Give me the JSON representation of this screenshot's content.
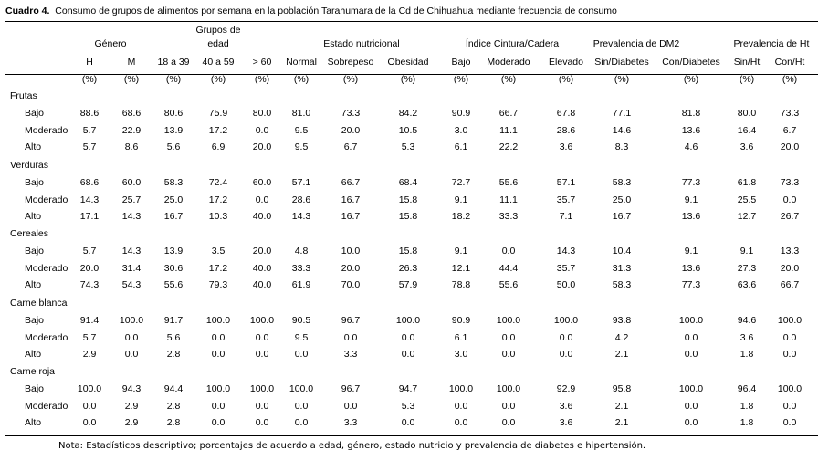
{
  "caption": {
    "label": "Cuadro 4.",
    "text": "Consumo de grupos de alimentos por semana en la población Tarahumara de la Cd de Chihuahua mediante frecuencia de consumo"
  },
  "header": {
    "groups": [
      {
        "label": "Género"
      },
      {
        "label": "Grupos de"
      },
      {
        "label": "edad"
      },
      {
        "label": "Estado nutricional"
      },
      {
        "label": "Índice Cintura/Cadera"
      },
      {
        "label": "Prevalencia de DM2"
      },
      {
        "label": "Prevalencia de Ht"
      }
    ],
    "columns": [
      "H",
      "M",
      "18 a 39",
      "40 a 59",
      "> 60",
      "Normal",
      "Sobrepeso",
      "Obesidad",
      "Bajo",
      "Moderado",
      "Elevado",
      "Sin/Diabetes",
      "Con/Diabetes",
      "Sin/Ht",
      "Con/Ht"
    ],
    "units": [
      "(%)",
      "(%)",
      "(%)",
      "(%)",
      "(%)",
      "(%)",
      "(%)",
      "(%)",
      "(%)",
      "(%)",
      "(%)",
      "(%)",
      "(%)",
      "(%)",
      "(%)"
    ]
  },
  "groups": [
    {
      "name": "Frutas",
      "rows": [
        {
          "level": "Bajo",
          "values": [
            "88.6",
            "68.6",
            "80.6",
            "75.9",
            "80.0",
            "81.0",
            "73.3",
            "84.2",
            "90.9",
            "66.7",
            "67.8",
            "77.1",
            "81.8",
            "80.0",
            "73.3"
          ]
        },
        {
          "level": "Moderado",
          "values": [
            "5.7",
            "22.9",
            "13.9",
            "17.2",
            "0.0",
            "9.5",
            "20.0",
            "10.5",
            "3.0",
            "11.1",
            "28.6",
            "14.6",
            "13.6",
            "16.4",
            "6.7"
          ]
        },
        {
          "level": "Alto",
          "values": [
            "5.7",
            "8.6",
            "5.6",
            "6.9",
            "20.0",
            "9.5",
            "6.7",
            "5.3",
            "6.1",
            "22.2",
            "3.6",
            "8.3",
            "4.6",
            "3.6",
            "20.0"
          ]
        }
      ]
    },
    {
      "name": "Verduras",
      "rows": [
        {
          "level": "Bajo",
          "values": [
            "68.6",
            "60.0",
            "58.3",
            "72.4",
            "60.0",
            "57.1",
            "66.7",
            "68.4",
            "72.7",
            "55.6",
            "57.1",
            "58.3",
            "77.3",
            "61.8",
            "73.3"
          ]
        },
        {
          "level": "Moderado",
          "values": [
            "14.3",
            "25.7",
            "25.0",
            "17.2",
            "0.0",
            "28.6",
            "16.7",
            "15.8",
            "9.1",
            "11.1",
            "35.7",
            "25.0",
            "9.1",
            "25.5",
            "0.0"
          ]
        },
        {
          "level": "Alto",
          "values": [
            "17.1",
            "14.3",
            "16.7",
            "10.3",
            "40.0",
            "14.3",
            "16.7",
            "15.8",
            "18.2",
            "33.3",
            "7.1",
            "16.7",
            "13.6",
            "12.7",
            "26.7"
          ]
        }
      ]
    },
    {
      "name": "Cereales",
      "rows": [
        {
          "level": "Bajo",
          "values": [
            "5.7",
            "14.3",
            "13.9",
            "3.5",
            "20.0",
            "4.8",
            "10.0",
            "15.8",
            "9.1",
            "0.0",
            "14.3",
            "10.4",
            "9.1",
            "9.1",
            "13.3"
          ]
        },
        {
          "level": "Moderado",
          "values": [
            "20.0",
            "31.4",
            "30.6",
            "17.2",
            "40.0",
            "33.3",
            "20.0",
            "26.3",
            "12.1",
            "44.4",
            "35.7",
            "31.3",
            "13.6",
            "27.3",
            "20.0"
          ]
        },
        {
          "level": "Alto",
          "values": [
            "74.3",
            "54.3",
            "55.6",
            "79.3",
            "40.0",
            "61.9",
            "70.0",
            "57.9",
            "78.8",
            "55.6",
            "50.0",
            "58.3",
            "77.3",
            "63.6",
            "66.7"
          ]
        }
      ]
    },
    {
      "name": "Carne blanca",
      "rows": [
        {
          "level": "Bajo",
          "values": [
            "91.4",
            "100.0",
            "91.7",
            "100.0",
            "100.0",
            "90.5",
            "96.7",
            "100.0",
            "90.9",
            "100.0",
            "100.0",
            "93.8",
            "100.0",
            "94.6",
            "100.0"
          ]
        },
        {
          "level": "Moderado",
          "values": [
            "5.7",
            "0.0",
            "5.6",
            "0.0",
            "0.0",
            "9.5",
            "0.0",
            "0.0",
            "6.1",
            "0.0",
            "0.0",
            "4.2",
            "0.0",
            "3.6",
            "0.0"
          ]
        },
        {
          "level": "Alto",
          "values": [
            "2.9",
            "0.0",
            "2.8",
            "0.0",
            "0.0",
            "0.0",
            "3.3",
            "0.0",
            "3.0",
            "0.0",
            "0.0",
            "2.1",
            "0.0",
            "1.8",
            "0.0"
          ]
        }
      ]
    },
    {
      "name": "Carne roja",
      "rows": [
        {
          "level": "Bajo",
          "values": [
            "100.0",
            "94.3",
            "94.4",
            "100.0",
            "100.0",
            "100.0",
            "96.7",
            "94.7",
            "100.0",
            "100.0",
            "92.9",
            "95.8",
            "100.0",
            "96.4",
            "100.0"
          ]
        },
        {
          "level": "Moderado",
          "values": [
            "0.0",
            "2.9",
            "2.8",
            "0.0",
            "0.0",
            "0.0",
            "0.0",
            "5.3",
            "0.0",
            "0.0",
            "3.6",
            "2.1",
            "0.0",
            "1.8",
            "0.0"
          ]
        },
        {
          "level": "Alto",
          "values": [
            "0.0",
            "2.9",
            "2.8",
            "0.0",
            "0.0",
            "0.0",
            "3.3",
            "0.0",
            "0.0",
            "0.0",
            "3.6",
            "2.1",
            "0.0",
            "1.8",
            "0.0"
          ]
        }
      ]
    }
  ],
  "note": "Nota: Estadísticos descriptivo; porcentajes de acuerdo a edad, género, estado nutricio y prevalencia de diabetes e hipertensión."
}
